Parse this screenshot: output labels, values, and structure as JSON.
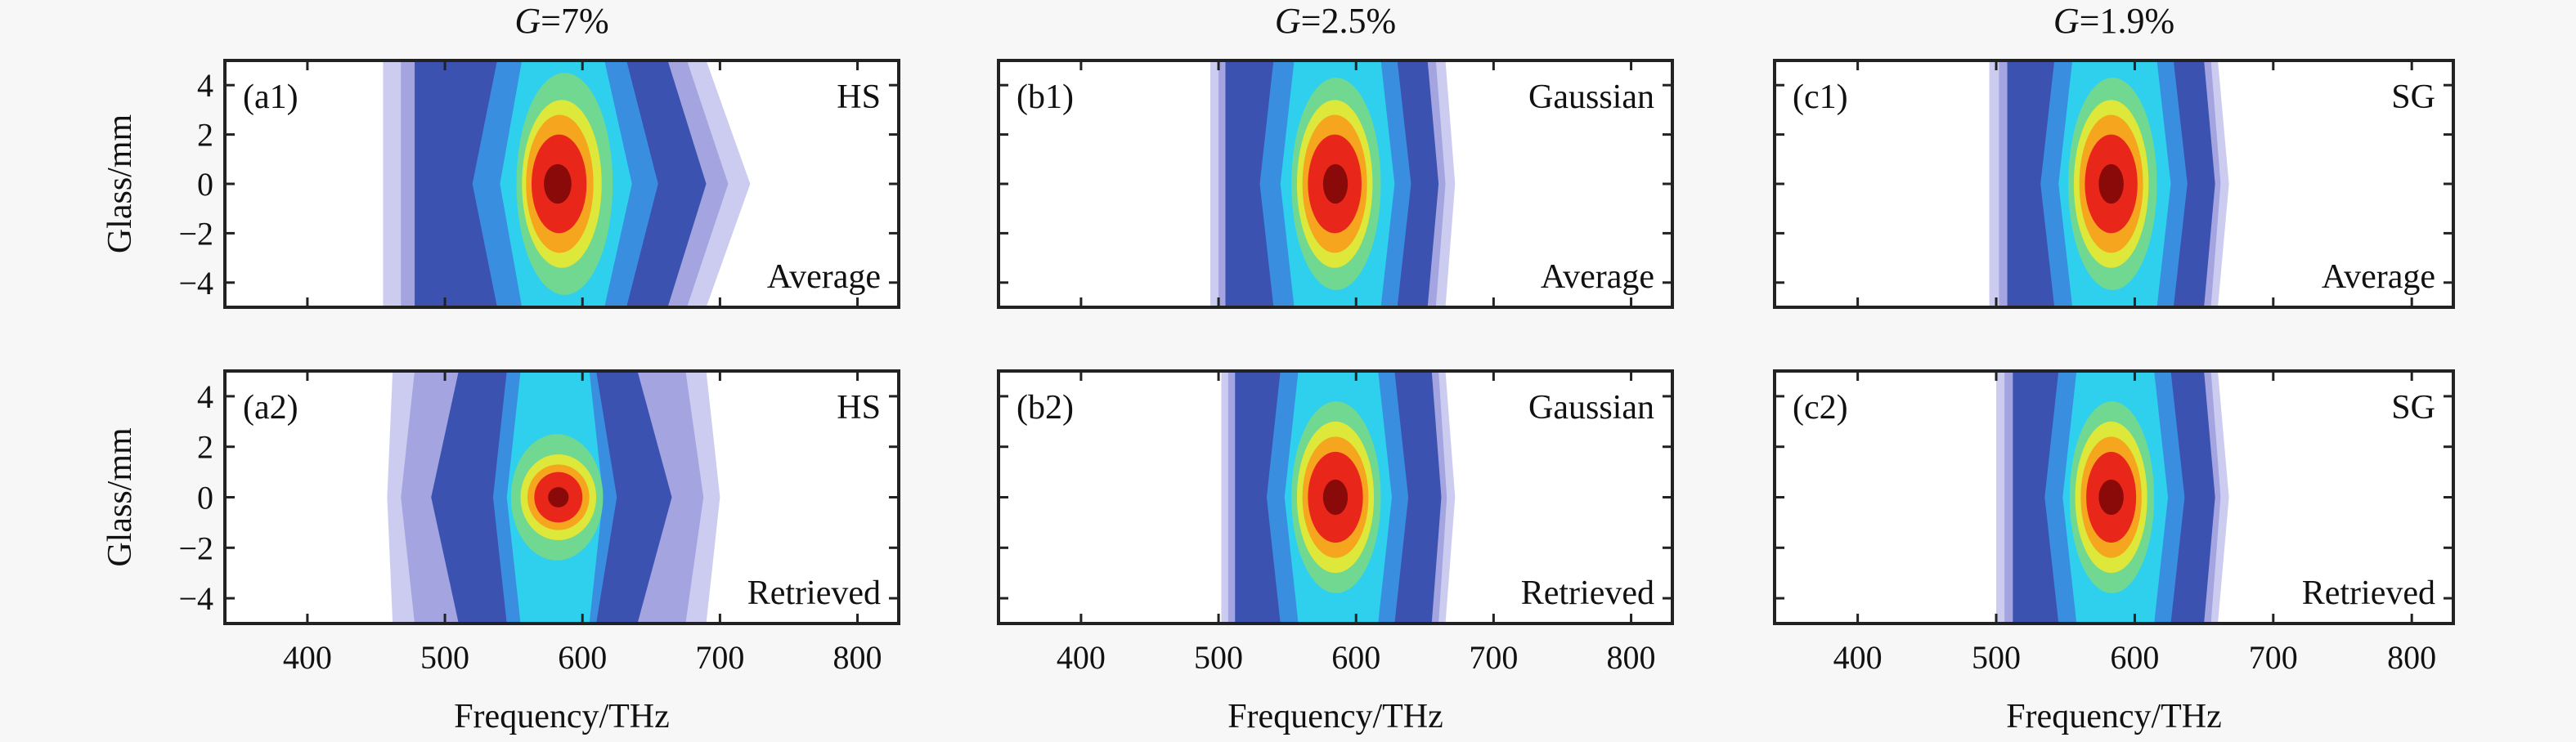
{
  "chart_data": {
    "type": "heatmap",
    "subtype": "filled-contour",
    "xlabel": "Frequency/THz",
    "ylabel": "Glass/mm",
    "xlim": [
      340,
      830
    ],
    "ylim": [
      -5,
      5
    ],
    "xticks": [
      400,
      500,
      600,
      700,
      800
    ],
    "yticks": [
      4,
      2,
      0,
      -2,
      -4
    ],
    "ytick_labels": [
      "4",
      "2",
      "0",
      "−2",
      "−4"
    ],
    "colormap": [
      "#ccccf0",
      "#a4a4e0",
      "#3b52b0",
      "#3a8ee0",
      "#2fd0ee",
      "#70d890",
      "#dde83a",
      "#f5a51e",
      "#e8261a",
      "#8a0a0a"
    ],
    "columns": [
      {
        "title_var": "G",
        "title_value": "=7%"
      },
      {
        "title_var": "G",
        "title_value": "=2.5%"
      },
      {
        "title_var": "G",
        "title_value": "=1.9%"
      }
    ],
    "panels": [
      {
        "id": "(a1)",
        "pulse": "HS",
        "kind": "Average",
        "col": 0,
        "row": 0,
        "center_thz": 582,
        "levels": [
          [
            455,
            722,
            455,
            690,
            6
          ],
          [
            468,
            706,
            468,
            676,
            6
          ],
          [
            478,
            690,
            478,
            662,
            6
          ],
          [
            520,
            655,
            538,
            632,
            6
          ],
          [
            540,
            636,
            556,
            616,
            6
          ],
          [
            552,
            622,
            0,
            0,
            4.5
          ],
          [
            556,
            614,
            0,
            0,
            3.4
          ],
          [
            559,
            608,
            0,
            0,
            2.8
          ],
          [
            563,
            603,
            0,
            0,
            2.0
          ],
          [
            572,
            592,
            0,
            0,
            0.8
          ]
        ]
      },
      {
        "id": "(a2)",
        "pulse": "HS",
        "kind": "Retrieved",
        "col": 0,
        "row": 1,
        "center_thz": 582,
        "levels": [
          [
            458,
            700,
            462,
            690,
            6
          ],
          [
            468,
            688,
            478,
            675,
            6
          ],
          [
            490,
            665,
            510,
            640,
            6
          ],
          [
            535,
            625,
            545,
            610,
            6
          ],
          [
            545,
            615,
            555,
            605,
            6
          ],
          [
            548,
            615,
            0,
            0,
            2.5
          ],
          [
            555,
            610,
            0,
            0,
            1.7
          ],
          [
            560,
            605,
            0,
            0,
            1.3
          ],
          [
            565,
            600,
            0,
            0,
            1.0
          ],
          [
            575,
            590,
            0,
            0,
            0.4
          ]
        ]
      },
      {
        "id": "(b1)",
        "pulse": "Gaussian",
        "kind": "Average",
        "col": 1,
        "row": 0,
        "center_thz": 585,
        "levels": [
          [
            494,
            672,
            494,
            665,
            6
          ],
          [
            500,
            665,
            500,
            658,
            6
          ],
          [
            505,
            660,
            505,
            652,
            6
          ],
          [
            530,
            640,
            540,
            630,
            6
          ],
          [
            545,
            628,
            555,
            618,
            6
          ],
          [
            553,
            618,
            0,
            0,
            4.3
          ],
          [
            557,
            612,
            0,
            0,
            3.4
          ],
          [
            561,
            608,
            0,
            0,
            2.8
          ],
          [
            565,
            604,
            0,
            0,
            2.0
          ],
          [
            576,
            594,
            0,
            0,
            0.8
          ]
        ]
      },
      {
        "id": "(b2)",
        "pulse": "Gaussian",
        "kind": "Retrieved",
        "col": 1,
        "row": 1,
        "center_thz": 585,
        "levels": [
          [
            502,
            672,
            502,
            665,
            6
          ],
          [
            507,
            666,
            507,
            660,
            6
          ],
          [
            512,
            662,
            512,
            655,
            6
          ],
          [
            535,
            638,
            545,
            628,
            6
          ],
          [
            548,
            626,
            558,
            616,
            6
          ],
          [
            553,
            618,
            0,
            0,
            3.8
          ],
          [
            557,
            613,
            0,
            0,
            3.0
          ],
          [
            561,
            609,
            0,
            0,
            2.4
          ],
          [
            565,
            605,
            0,
            0,
            1.8
          ],
          [
            576,
            594,
            0,
            0,
            0.7
          ]
        ]
      },
      {
        "id": "(c1)",
        "pulse": "SG",
        "kind": "Average",
        "col": 2,
        "row": 0,
        "center_thz": 582,
        "levels": [
          [
            495,
            668,
            495,
            660,
            6
          ],
          [
            502,
            662,
            502,
            655,
            6
          ],
          [
            508,
            658,
            508,
            650,
            6
          ],
          [
            532,
            638,
            542,
            628,
            6
          ],
          [
            545,
            626,
            555,
            616,
            6
          ],
          [
            552,
            616,
            0,
            0,
            4.3
          ],
          [
            556,
            610,
            0,
            0,
            3.4
          ],
          [
            560,
            606,
            0,
            0,
            2.8
          ],
          [
            564,
            602,
            0,
            0,
            2.0
          ],
          [
            574,
            592,
            0,
            0,
            0.8
          ]
        ]
      },
      {
        "id": "(c2)",
        "pulse": "SG",
        "kind": "Retrieved",
        "col": 2,
        "row": 1,
        "center_thz": 582,
        "levels": [
          [
            500,
            668,
            500,
            660,
            6
          ],
          [
            506,
            662,
            506,
            655,
            6
          ],
          [
            512,
            658,
            512,
            650,
            6
          ],
          [
            535,
            636,
            545,
            626,
            6
          ],
          [
            548,
            624,
            558,
            614,
            6
          ],
          [
            553,
            614,
            0,
            0,
            3.8
          ],
          [
            557,
            609,
            0,
            0,
            3.0
          ],
          [
            561,
            605,
            0,
            0,
            2.4
          ],
          [
            565,
            601,
            0,
            0,
            1.8
          ],
          [
            574,
            592,
            0,
            0,
            0.7
          ]
        ]
      }
    ]
  }
}
